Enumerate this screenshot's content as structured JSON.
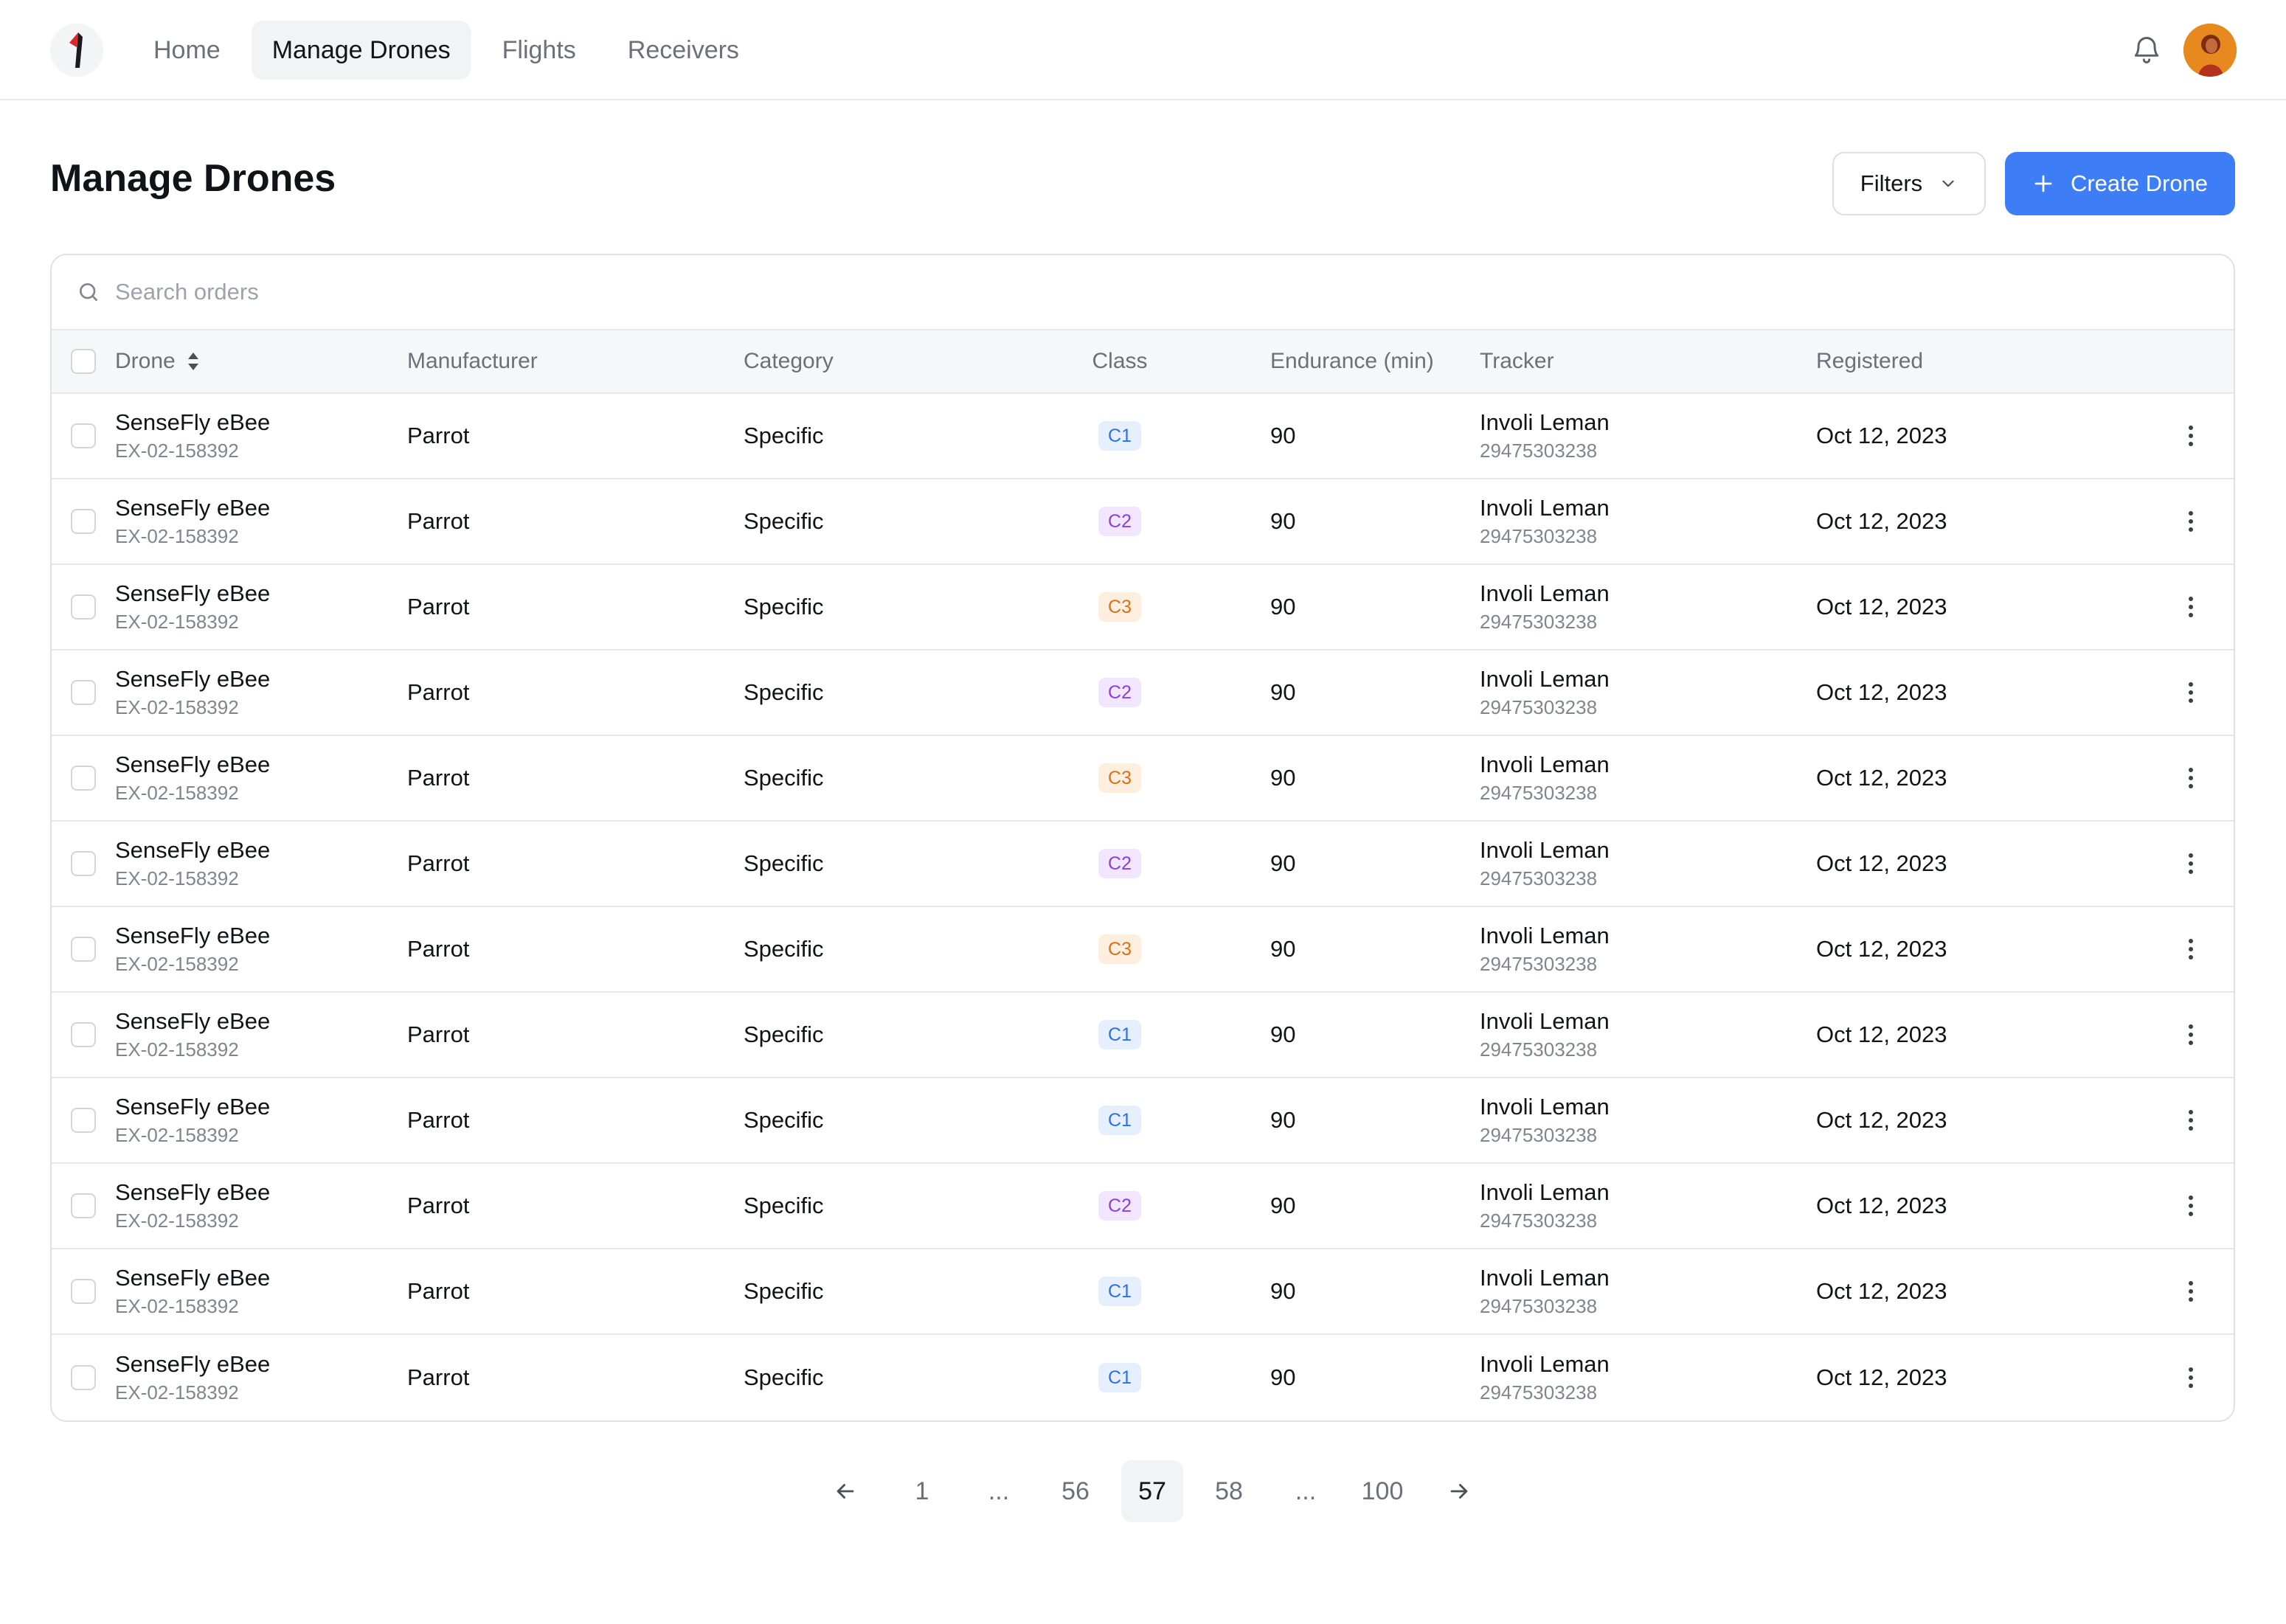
{
  "nav": {
    "items": [
      {
        "label": "Home",
        "active": false
      },
      {
        "label": "Manage Drones",
        "active": true
      },
      {
        "label": "Flights",
        "active": false
      },
      {
        "label": "Receivers",
        "active": false
      }
    ],
    "icons": {
      "logo": "brand-logo-icon",
      "bell": "bell-icon"
    }
  },
  "header": {
    "title": "Manage Drones",
    "filters_label": "Filters",
    "create_label": "Create Drone"
  },
  "colors": {
    "accent": "#3d7ef6"
  },
  "search": {
    "placeholder": "Search orders"
  },
  "columns": {
    "drone": "Drone",
    "manufacturer": "Manufacturer",
    "category": "Category",
    "class": "Class",
    "endurance": "Endurance (min)",
    "tracker": "Tracker",
    "registered": "Registered"
  },
  "badge_styles": {
    "C1": {
      "bg": "#e6effd",
      "fg": "#2f6fe6"
    },
    "C2": {
      "bg": "#f1e6fd",
      "fg": "#8a3fe0"
    },
    "C3": {
      "bg": "#fdeede",
      "fg": "#d9721a"
    }
  },
  "rows": [
    {
      "name": "SenseFly eBee",
      "id": "EX-02-158392",
      "manufacturer": "Parrot",
      "category": "Specific",
      "class": "C1",
      "endurance": "90",
      "tracker": "Involi Leman",
      "tracker_id": "29475303238",
      "registered": "Oct 12, 2023"
    },
    {
      "name": "SenseFly eBee",
      "id": "EX-02-158392",
      "manufacturer": "Parrot",
      "category": "Specific",
      "class": "C2",
      "endurance": "90",
      "tracker": "Involi Leman",
      "tracker_id": "29475303238",
      "registered": "Oct 12, 2023"
    },
    {
      "name": "SenseFly eBee",
      "id": "EX-02-158392",
      "manufacturer": "Parrot",
      "category": "Specific",
      "class": "C3",
      "endurance": "90",
      "tracker": "Involi Leman",
      "tracker_id": "29475303238",
      "registered": "Oct 12, 2023"
    },
    {
      "name": "SenseFly eBee",
      "id": "EX-02-158392",
      "manufacturer": "Parrot",
      "category": "Specific",
      "class": "C2",
      "endurance": "90",
      "tracker": "Involi Leman",
      "tracker_id": "29475303238",
      "registered": "Oct 12, 2023"
    },
    {
      "name": "SenseFly eBee",
      "id": "EX-02-158392",
      "manufacturer": "Parrot",
      "category": "Specific",
      "class": "C3",
      "endurance": "90",
      "tracker": "Involi Leman",
      "tracker_id": "29475303238",
      "registered": "Oct 12, 2023"
    },
    {
      "name": "SenseFly eBee",
      "id": "EX-02-158392",
      "manufacturer": "Parrot",
      "category": "Specific",
      "class": "C2",
      "endurance": "90",
      "tracker": "Involi Leman",
      "tracker_id": "29475303238",
      "registered": "Oct 12, 2023"
    },
    {
      "name": "SenseFly eBee",
      "id": "EX-02-158392",
      "manufacturer": "Parrot",
      "category": "Specific",
      "class": "C3",
      "endurance": "90",
      "tracker": "Involi Leman",
      "tracker_id": "29475303238",
      "registered": "Oct 12, 2023"
    },
    {
      "name": "SenseFly eBee",
      "id": "EX-02-158392",
      "manufacturer": "Parrot",
      "category": "Specific",
      "class": "C1",
      "endurance": "90",
      "tracker": "Involi Leman",
      "tracker_id": "29475303238",
      "registered": "Oct 12, 2023"
    },
    {
      "name": "SenseFly eBee",
      "id": "EX-02-158392",
      "manufacturer": "Parrot",
      "category": "Specific",
      "class": "C1",
      "endurance": "90",
      "tracker": "Involi Leman",
      "tracker_id": "29475303238",
      "registered": "Oct 12, 2023"
    },
    {
      "name": "SenseFly eBee",
      "id": "EX-02-158392",
      "manufacturer": "Parrot",
      "category": "Specific",
      "class": "C2",
      "endurance": "90",
      "tracker": "Involi Leman",
      "tracker_id": "29475303238",
      "registered": "Oct 12, 2023"
    },
    {
      "name": "SenseFly eBee",
      "id": "EX-02-158392",
      "manufacturer": "Parrot",
      "category": "Specific",
      "class": "C1",
      "endurance": "90",
      "tracker": "Involi Leman",
      "tracker_id": "29475303238",
      "registered": "Oct 12, 2023"
    },
    {
      "name": "SenseFly eBee",
      "id": "EX-02-158392",
      "manufacturer": "Parrot",
      "category": "Specific",
      "class": "C1",
      "endurance": "90",
      "tracker": "Involi Leman",
      "tracker_id": "29475303238",
      "registered": "Oct 12, 2023"
    }
  ],
  "pagination": {
    "pages": [
      {
        "label": "1",
        "current": false
      },
      {
        "label": "...",
        "current": false,
        "ellipsis": true
      },
      {
        "label": "56",
        "current": false
      },
      {
        "label": "57",
        "current": true
      },
      {
        "label": "58",
        "current": false
      },
      {
        "label": "...",
        "current": false,
        "ellipsis": true
      },
      {
        "label": "100",
        "current": false
      }
    ]
  }
}
